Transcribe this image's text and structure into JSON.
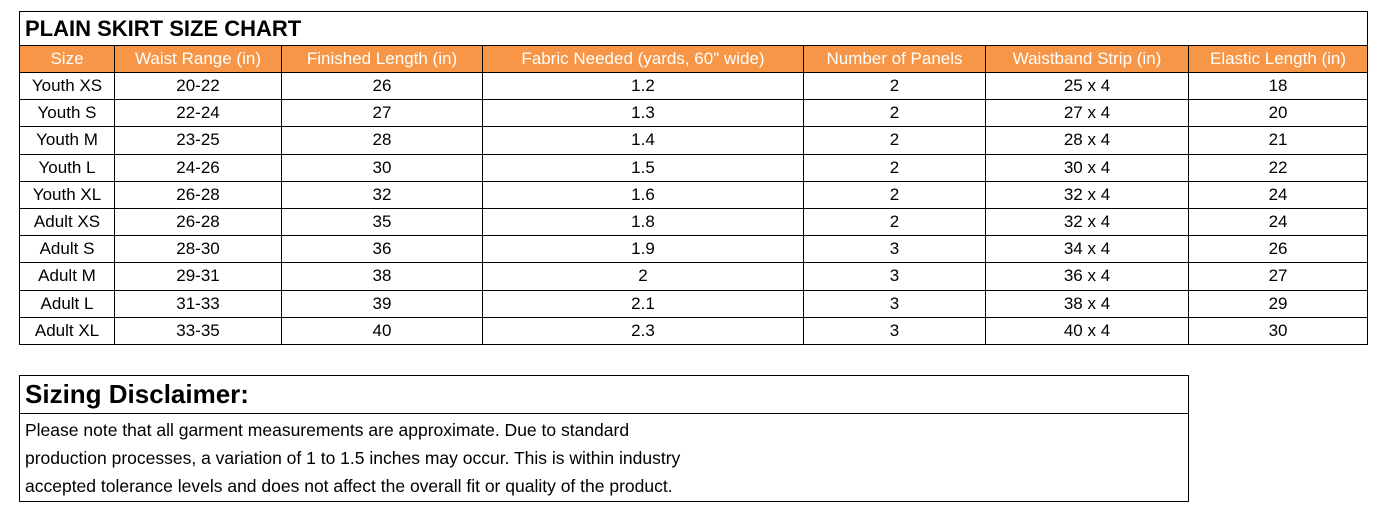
{
  "size_chart": {
    "title": "PLAIN SKIRT SIZE CHART",
    "columns": [
      "Size",
      "Waist Range (in)",
      "Finished Length (in)",
      "Fabric Needed (yards, 60\" wide)",
      "Number of Panels",
      "Waistband Strip (in)",
      "Elastic Length (in)"
    ],
    "rows": [
      [
        "Youth XS",
        "20-22",
        "26",
        "1.2",
        "2",
        "25 x 4",
        "18"
      ],
      [
        "Youth S",
        "22-24",
        "27",
        "1.3",
        "2",
        "27 x 4",
        "20"
      ],
      [
        "Youth M",
        "23-25",
        "28",
        "1.4",
        "2",
        "28 x 4",
        "21"
      ],
      [
        "Youth L",
        "24-26",
        "30",
        "1.5",
        "2",
        "30 x 4",
        "22"
      ],
      [
        "Youth XL",
        "26-28",
        "32",
        "1.6",
        "2",
        "32 x 4",
        "24"
      ],
      [
        "Adult XS",
        "26-28",
        "35",
        "1.8",
        "2",
        "32 x 4",
        "24"
      ],
      [
        "Adult S",
        "28-30",
        "36",
        "1.9",
        "3",
        "34 x 4",
        "26"
      ],
      [
        "Adult M",
        "29-31",
        "38",
        "2",
        "3",
        "36 x 4",
        "27"
      ],
      [
        "Adult L",
        "31-33",
        "39",
        "2.1",
        "3",
        "38 x 4",
        "29"
      ],
      [
        "Adult XL",
        "33-35",
        "40",
        "2.3",
        "3",
        "40 x 4",
        "30"
      ]
    ]
  },
  "disclaimer": {
    "title": "Sizing Disclaimer:",
    "lines": [
      "Please note that all garment measurements are approximate. Due to standard",
      "production processes, a variation of 1 to 1.5 inches may occur. This is within industry",
      "accepted tolerance levels and does not affect the overall fit or quality of the product."
    ]
  },
  "colors": {
    "header_fill": "#f79646",
    "header_text": "#ffffff",
    "border": "#000000"
  }
}
